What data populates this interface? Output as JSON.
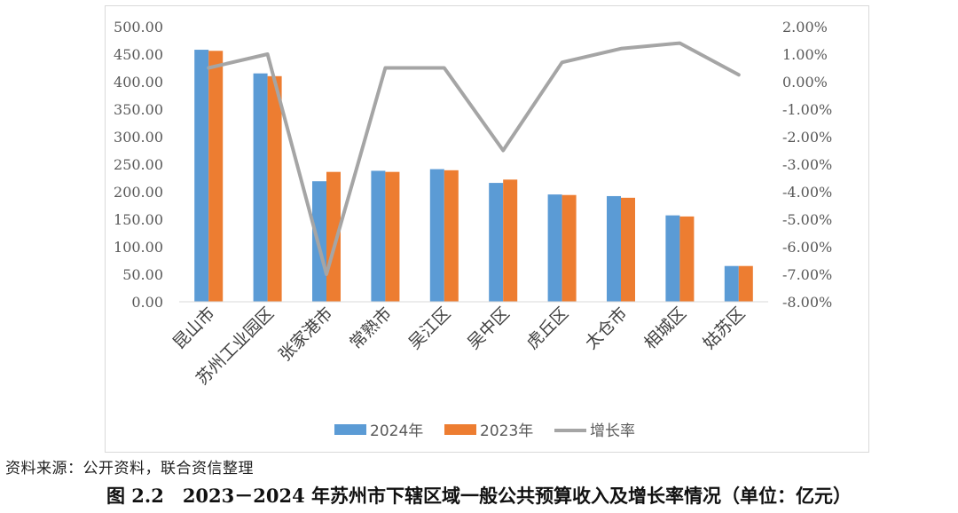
{
  "chart_data": {
    "type": "bar",
    "categories": [
      "昆山市",
      "苏州工业园区",
      "张家港市",
      "常熟市",
      "吴江区",
      "吴中区",
      "虎丘区",
      "太仓市",
      "相城区",
      "姑苏区"
    ],
    "series": [
      {
        "name": "2024年",
        "kind": "bar",
        "axis": "left",
        "color": "#5b9bd5",
        "values": [
          458,
          415,
          219,
          238,
          241,
          216,
          195,
          192,
          157,
          65
        ]
      },
      {
        "name": "2023年",
        "kind": "bar",
        "axis": "left",
        "color": "#ed7d31",
        "values": [
          456,
          410,
          236,
          236,
          239,
          222,
          194,
          189,
          155,
          65
        ]
      },
      {
        "name": "增长率",
        "kind": "line",
        "axis": "right",
        "color": "#a5a5a5",
        "values": [
          0.5,
          1.0,
          -7.0,
          0.5,
          0.5,
          -2.5,
          0.7,
          1.2,
          1.4,
          0.25
        ]
      }
    ],
    "y_left": {
      "min": 0,
      "max": 500,
      "step": 50,
      "tick_labels": [
        "0.00",
        "50.00",
        "100.00",
        "150.00",
        "200.00",
        "250.00",
        "300.00",
        "350.00",
        "400.00",
        "450.00",
        "500.00"
      ]
    },
    "y_right": {
      "min": -8,
      "max": 2,
      "step": 1,
      "unit": "%",
      "tick_labels": [
        "-8.00%",
        "-7.00%",
        "-6.00%",
        "-5.00%",
        "-4.00%",
        "-3.00%",
        "-2.00%",
        "-1.00%",
        "0.00%",
        "1.00%",
        "2.00%"
      ]
    },
    "legend_position": "bottom",
    "grid": false
  },
  "source_note": "资料来源：公开资料，联合资信整理",
  "caption": "图 2.2　2023－2024 年苏州市下辖区域一般公共预算收入及增长率情况（单位：亿元）"
}
